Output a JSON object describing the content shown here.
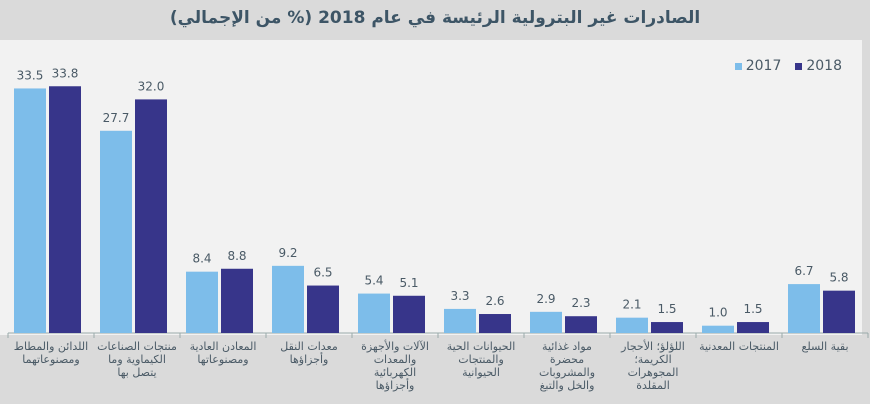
{
  "chart_data": {
    "type": "bar",
    "title": "الصادرات غير البترولية الرئيسة في عام 2018 (% من الإجمالي)",
    "categories": [
      "اللدائن والمطاط ومصنوعاتهما",
      "منتجات الصناعات الكيماوية وما يتصل بها",
      "المعادن العادية ومصنوعاتها",
      "معدات النقل وأجزاؤها",
      "الآلات والأجهزة والمعدات الكهربائية وأجزاؤها",
      "الحيوانات الحية والمنتجات الحيوانية",
      "مواد غذائية محضرة والمشروبات والخل والتبغ",
      "اللؤلؤ؛ الأحجار الكريمة؛ المجوهرات المقلدة",
      "المنتجات المعدنية",
      "بقية السلع"
    ],
    "series": [
      {
        "name": "2017",
        "color": "#7dbdea",
        "values": [
          33.5,
          27.7,
          8.4,
          9.2,
          5.4,
          3.3,
          2.9,
          2.1,
          1.0,
          6.7
        ]
      },
      {
        "name": "2018",
        "color": "#37358a",
        "values": [
          33.8,
          32.0,
          8.8,
          6.5,
          5.1,
          2.6,
          2.3,
          1.5,
          1.5,
          5.8
        ]
      }
    ],
    "ylim": [
      0,
      36
    ],
    "legend": "top-right",
    "grid": false,
    "xlabel": "",
    "ylabel": ""
  }
}
